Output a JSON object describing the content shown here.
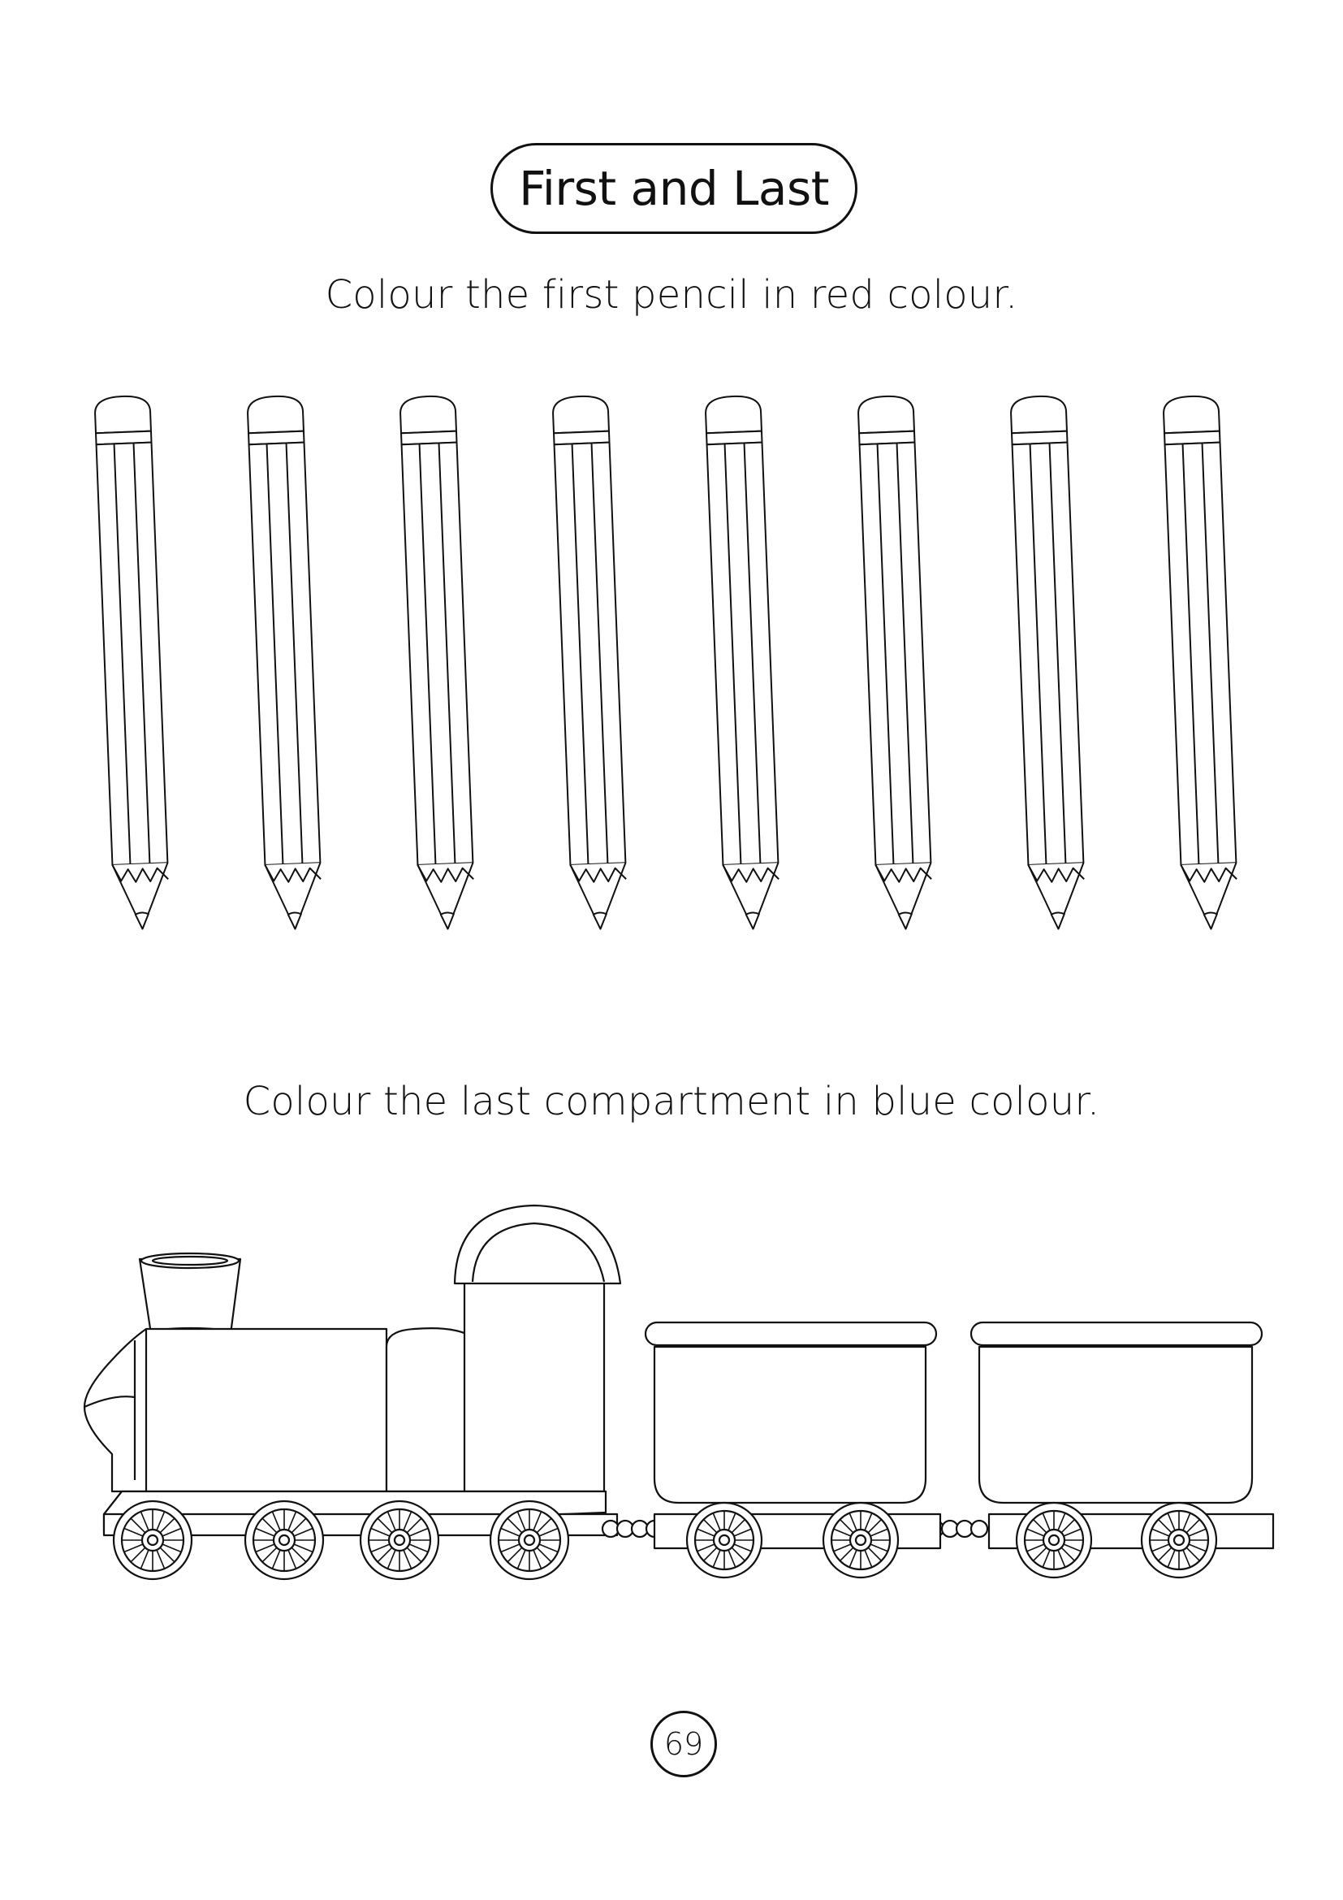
{
  "worksheet": {
    "title": "First and Last",
    "instruction_pencils": "Colour the first pencil in red colour.",
    "instruction_train": "Colour the last compartment in blue colour.",
    "page_number": "69"
  },
  "pencils": {
    "count": 8
  },
  "train": {
    "engine": 1,
    "compartments": 2
  },
  "colors": {
    "line": "#111111",
    "background": "#ffffff"
  }
}
